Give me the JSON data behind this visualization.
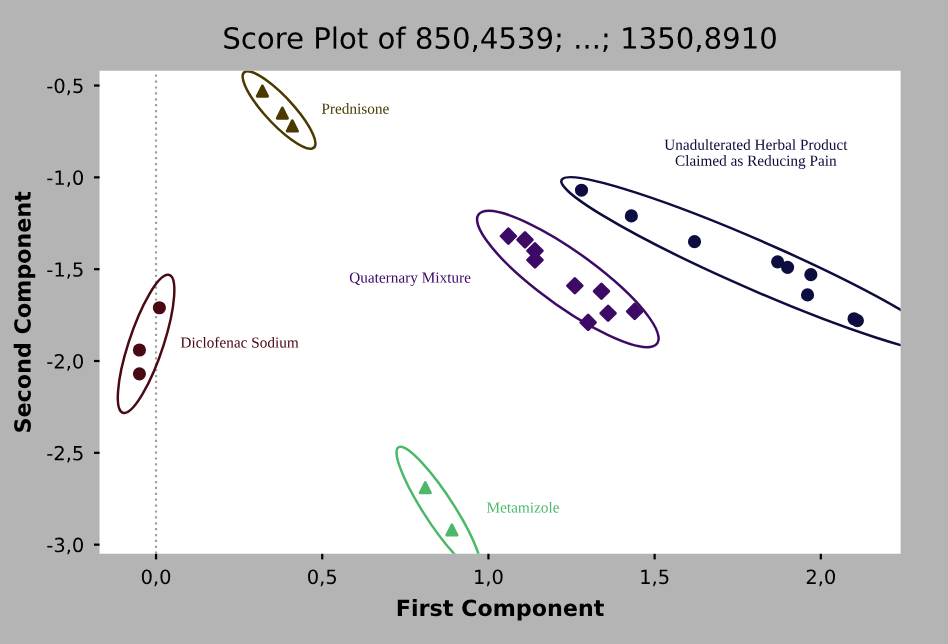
{
  "chart_data": {
    "type": "scatter",
    "title": "Score Plot of 850,4539; ...; 1350,8910",
    "xlabel": "First Component",
    "ylabel": "Second Component",
    "xlim": [
      -0.17,
      2.24
    ],
    "ylim": [
      -3.05,
      -0.42
    ],
    "xticks": [
      {
        "value": 0.0,
        "label": "0,0"
      },
      {
        "value": 0.5,
        "label": "0,5"
      },
      {
        "value": 1.0,
        "label": "1,0"
      },
      {
        "value": 1.5,
        "label": "1,5"
      },
      {
        "value": 2.0,
        "label": "2,0"
      }
    ],
    "yticks": [
      {
        "value": -0.5,
        "label": "-0,5"
      },
      {
        "value": -1.0,
        "label": "-1,0"
      },
      {
        "value": -1.5,
        "label": "-1,5"
      },
      {
        "value": -2.0,
        "label": "-2,0"
      },
      {
        "value": -2.5,
        "label": "-2,5"
      },
      {
        "value": -3.0,
        "label": "-3,0"
      }
    ],
    "grid": false,
    "legend": false,
    "ref_lines": [
      {
        "axis": "x",
        "value": 0,
        "color": "#a0a0a0",
        "line_style": "dotted"
      }
    ],
    "series": [
      {
        "name": "Prednisone",
        "color": "#4a3a00",
        "marker": "triangle",
        "x": [
          0.32,
          0.38,
          0.41
        ],
        "values": [
          -0.53,
          -0.65,
          -0.72
        ]
      },
      {
        "name": "Diclofenac Sodium",
        "color": "#4a0a14",
        "marker": "circle",
        "x": [
          0.01,
          -0.05,
          -0.05
        ],
        "values": [
          -1.71,
          -1.94,
          -2.07
        ]
      },
      {
        "name": "Metamizole",
        "color": "#4cb86a",
        "marker": "triangle",
        "x": [
          0.81,
          0.89
        ],
        "values": [
          -2.69,
          -2.92
        ]
      },
      {
        "name": "Quaternary Mixture",
        "color": "#3d0a66",
        "marker": "diamond",
        "x": [
          1.06,
          1.11,
          1.14,
          1.14,
          1.26,
          1.34,
          1.3,
          1.36,
          1.44
        ],
        "values": [
          -1.32,
          -1.34,
          -1.4,
          -1.45,
          -1.59,
          -1.62,
          -1.79,
          -1.74,
          -1.73
        ]
      },
      {
        "name": "Unadulterated Herbal Product\nClaimed as Reducing Pain",
        "color": "#0d0d40",
        "marker": "circle",
        "x": [
          1.28,
          1.43,
          1.62,
          1.87,
          1.9,
          1.97,
          1.96,
          2.1,
          2.11
        ],
        "values": [
          -1.07,
          -1.21,
          -1.35,
          -1.46,
          -1.49,
          -1.53,
          -1.64,
          -1.77,
          -1.78
        ]
      }
    ]
  }
}
